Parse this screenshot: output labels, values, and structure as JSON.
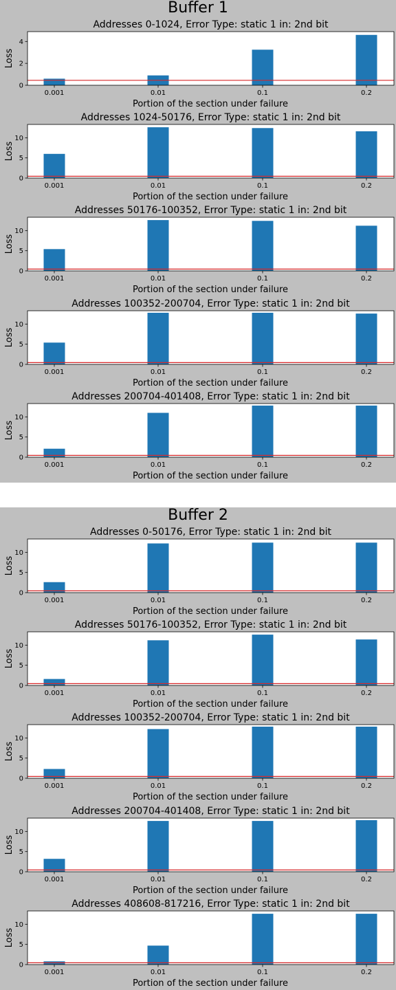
{
  "colors": {
    "bar": "#1f77b4",
    "threshold": "#d62728",
    "figure_bg": "#bfbfbf",
    "plot_bg": "#ffffff"
  },
  "chart_data": [
    {
      "figure_title": "Buffer 1",
      "charts": [
        {
          "type": "bar",
          "title": "Addresses 0-1024, Error Type: static 1 in: 2nd bit",
          "xlabel": "Portion of the section under failure",
          "ylabel": "Loss",
          "categories": [
            "0.001",
            "0.01",
            "0.1",
            "0.2"
          ],
          "values": [
            0.6,
            0.9,
            3.25,
            4.6
          ],
          "threshold": 0.45,
          "ylim": [
            0,
            4.9
          ],
          "yticks": [
            0,
            2,
            4
          ]
        },
        {
          "type": "bar",
          "title": "Addresses 1024-50176, Error Type: static 1 in: 2nd bit",
          "xlabel": "Portion of the section under failure",
          "ylabel": "Loss",
          "categories": [
            "0.001",
            "0.01",
            "0.1",
            "0.2"
          ],
          "values": [
            6.0,
            12.6,
            12.4,
            11.6
          ],
          "threshold": 0.45,
          "ylim": [
            0,
            13.3
          ],
          "yticks": [
            0,
            5,
            10
          ]
        },
        {
          "type": "bar",
          "title": "Addresses 50176-100352, Error Type: static 1 in: 2nd bit",
          "xlabel": "Portion of the section under failure",
          "ylabel": "Loss",
          "categories": [
            "0.001",
            "0.01",
            "0.1",
            "0.2"
          ],
          "values": [
            5.4,
            12.6,
            12.4,
            11.2
          ],
          "threshold": 0.45,
          "ylim": [
            0,
            13.3
          ],
          "yticks": [
            0,
            5,
            10
          ]
        },
        {
          "type": "bar",
          "title": "Addresses 100352-200704, Error Type: static 1 in: 2nd bit",
          "xlabel": "Portion of the section under failure",
          "ylabel": "Loss",
          "categories": [
            "0.001",
            "0.01",
            "0.1",
            "0.2"
          ],
          "values": [
            5.4,
            12.8,
            12.8,
            12.6
          ],
          "threshold": 0.45,
          "ylim": [
            0,
            13.3
          ],
          "yticks": [
            0,
            5,
            10
          ]
        },
        {
          "type": "bar",
          "title": "Addresses 200704-401408, Error Type: static 1 in: 2nd bit",
          "xlabel": "Portion of the section under failure",
          "ylabel": "Loss",
          "categories": [
            "0.001",
            "0.01",
            "0.1",
            "0.2"
          ],
          "values": [
            2.1,
            11.0,
            12.8,
            12.8
          ],
          "threshold": 0.45,
          "ylim": [
            0,
            13.3
          ],
          "yticks": [
            0,
            5,
            10
          ]
        }
      ]
    },
    {
      "figure_title": "Buffer 2",
      "charts": [
        {
          "type": "bar",
          "title": "Addresses 0-50176, Error Type: static 1 in: 2nd bit",
          "xlabel": "Portion of the section under failure",
          "ylabel": "Loss",
          "categories": [
            "0.001",
            "0.01",
            "0.1",
            "0.2"
          ],
          "values": [
            2.6,
            12.2,
            12.4,
            12.4
          ],
          "threshold": 0.45,
          "ylim": [
            0,
            13.3
          ],
          "yticks": [
            0,
            5,
            10
          ]
        },
        {
          "type": "bar",
          "title": "Addresses 50176-100352, Error Type: static 1 in: 2nd bit",
          "xlabel": "Portion of the section under failure",
          "ylabel": "Loss",
          "categories": [
            "0.001",
            "0.01",
            "0.1",
            "0.2"
          ],
          "values": [
            1.6,
            11.2,
            12.6,
            11.4
          ],
          "threshold": 0.45,
          "ylim": [
            0,
            13.3
          ],
          "yticks": [
            0,
            5,
            10
          ]
        },
        {
          "type": "bar",
          "title": "Addresses 100352-200704, Error Type: static 1 in: 2nd bit",
          "xlabel": "Portion of the section under failure",
          "ylabel": "Loss",
          "categories": [
            "0.001",
            "0.01",
            "0.1",
            "0.2"
          ],
          "values": [
            2.3,
            12.2,
            12.8,
            12.8
          ],
          "threshold": 0.45,
          "ylim": [
            0,
            13.3
          ],
          "yticks": [
            0,
            5,
            10
          ]
        },
        {
          "type": "bar",
          "title": "Addresses 200704-401408, Error Type: static 1 in: 2nd bit",
          "xlabel": "Portion of the section under failure",
          "ylabel": "Loss",
          "categories": [
            "0.001",
            "0.01",
            "0.1",
            "0.2"
          ],
          "values": [
            3.2,
            12.6,
            12.6,
            12.8
          ],
          "threshold": 0.45,
          "ylim": [
            0,
            13.3
          ],
          "yticks": [
            0,
            5,
            10
          ]
        },
        {
          "type": "bar",
          "title": "Addresses 408608-817216, Error Type: static 1 in: 2nd bit",
          "xlabel": "Portion of the section under failure",
          "ylabel": "Loss",
          "categories": [
            "0.001",
            "0.01",
            "0.1",
            "0.2"
          ],
          "values": [
            0.8,
            4.7,
            12.6,
            12.6
          ],
          "threshold": 0.45,
          "ylim": [
            0,
            13.3
          ],
          "yticks": [
            0,
            5,
            10
          ]
        }
      ]
    }
  ]
}
